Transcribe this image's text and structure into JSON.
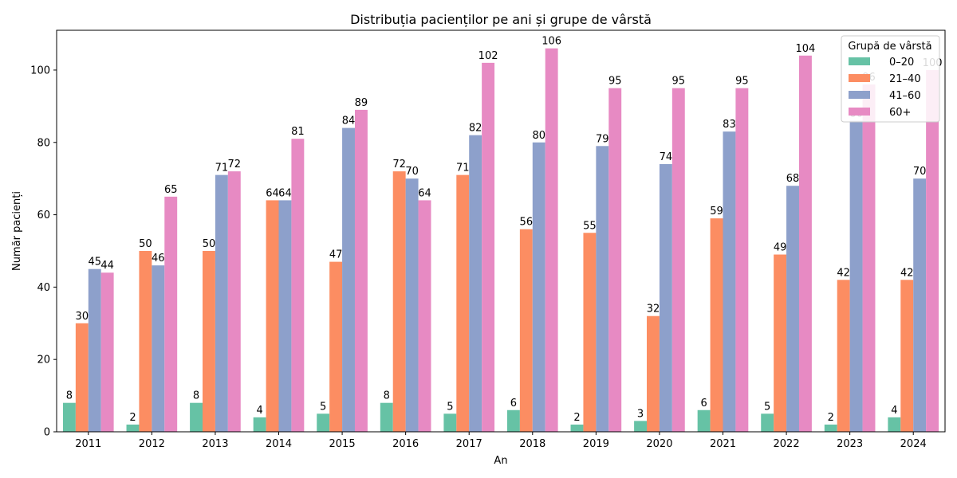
{
  "chart_data": {
    "type": "bar",
    "title": "Distribuția pacienților pe ani și grupe de vârstă",
    "xlabel": "An",
    "ylabel": "Număr pacienți",
    "ylim": [
      0,
      111
    ],
    "yticks": [
      0,
      20,
      40,
      60,
      80,
      100
    ],
    "grid": false,
    "legend_title": "Grupă de vârstă",
    "legend_position": "top-right",
    "categories": [
      "2011",
      "2012",
      "2013",
      "2014",
      "2015",
      "2016",
      "2017",
      "2018",
      "2019",
      "2020",
      "2021",
      "2022",
      "2023",
      "2024"
    ],
    "series": [
      {
        "name": "0–20",
        "color": "#66c2a5",
        "values": [
          8,
          2,
          8,
          4,
          5,
          8,
          5,
          6,
          2,
          3,
          6,
          5,
          2,
          4
        ]
      },
      {
        "name": "21–40",
        "color": "#fc8d62",
        "values": [
          30,
          50,
          50,
          64,
          47,
          72,
          71,
          56,
          55,
          32,
          59,
          49,
          42,
          42
        ]
      },
      {
        "name": "41–60",
        "color": "#8da0cb",
        "values": [
          45,
          46,
          71,
          64,
          84,
          70,
          82,
          80,
          79,
          74,
          83,
          68,
          86,
          70
        ]
      },
      {
        "name": "60+",
        "color": "#e78ac3",
        "values": [
          44,
          65,
          72,
          81,
          89,
          64,
          102,
          106,
          95,
          95,
          95,
          104,
          96,
          100
        ]
      }
    ]
  }
}
